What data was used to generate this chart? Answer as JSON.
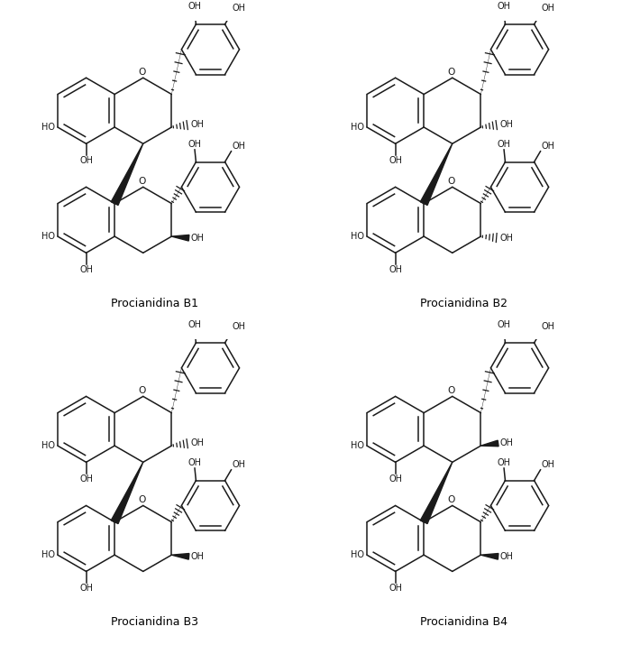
{
  "background_color": "#ffffff",
  "line_color": "#000000",
  "text_color": "#000000",
  "title_fontsize": 9,
  "label_fontsize": 7,
  "fig_width": 7.0,
  "fig_height": 7.15,
  "labels": [
    "Procianidina B1",
    "Procianidina B2",
    "Procianidina B3",
    "Procianidina B4"
  ]
}
